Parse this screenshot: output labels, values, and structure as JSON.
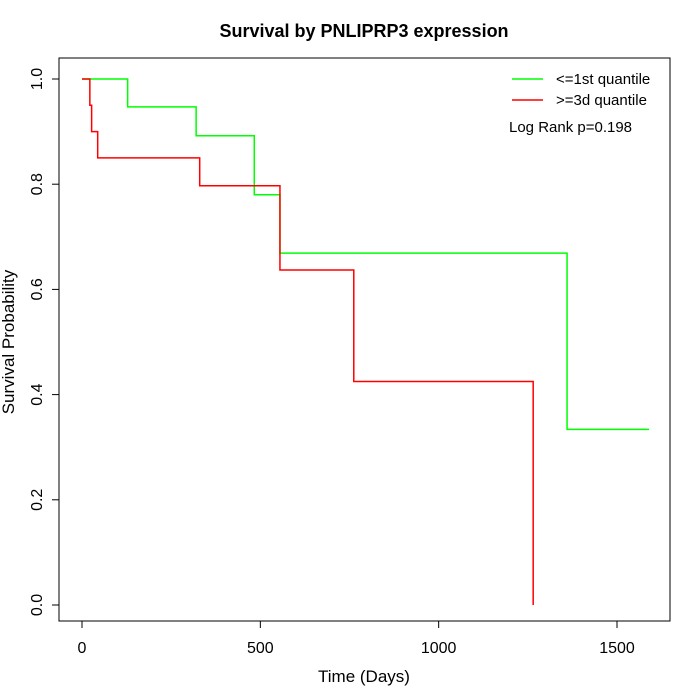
{
  "chart_data": {
    "type": "line",
    "title": "Survival by PNLIPRP3 expression",
    "xlabel": "Time (Days)",
    "ylabel": "Survival Probability",
    "xlim": [
      0,
      1650
    ],
    "ylim": [
      0,
      1.0
    ],
    "xticks": [
      0,
      500,
      1000,
      1500
    ],
    "yticks": [
      0.0,
      0.2,
      0.4,
      0.6,
      0.8,
      1.0
    ],
    "xtick_labels": [
      "0",
      "500",
      "1000",
      "1500"
    ],
    "ytick_labels": [
      "0.0",
      "0.2",
      "0.4",
      "0.6",
      "0.8",
      "1.0"
    ],
    "grid": false,
    "legend_position": "top-right",
    "annotation": "Log Rank p=0.198",
    "series": [
      {
        "name": "<=1st quantile",
        "color": "#00ff00",
        "step": true,
        "x": [
          0,
          128,
          320,
          483,
          555,
          1360,
          1590
        ],
        "y": [
          1.0,
          0.947,
          0.892,
          0.78,
          0.669,
          0.334,
          0.334
        ]
      },
      {
        "name": ">=3d quantile",
        "color": "#ff0000",
        "step": true,
        "x": [
          0,
          22,
          27,
          44,
          330,
          555,
          762,
          1265,
          1265
        ],
        "y": [
          1.0,
          0.95,
          0.9,
          0.85,
          0.797,
          0.637,
          0.425,
          0.425,
          0.0
        ]
      }
    ]
  }
}
